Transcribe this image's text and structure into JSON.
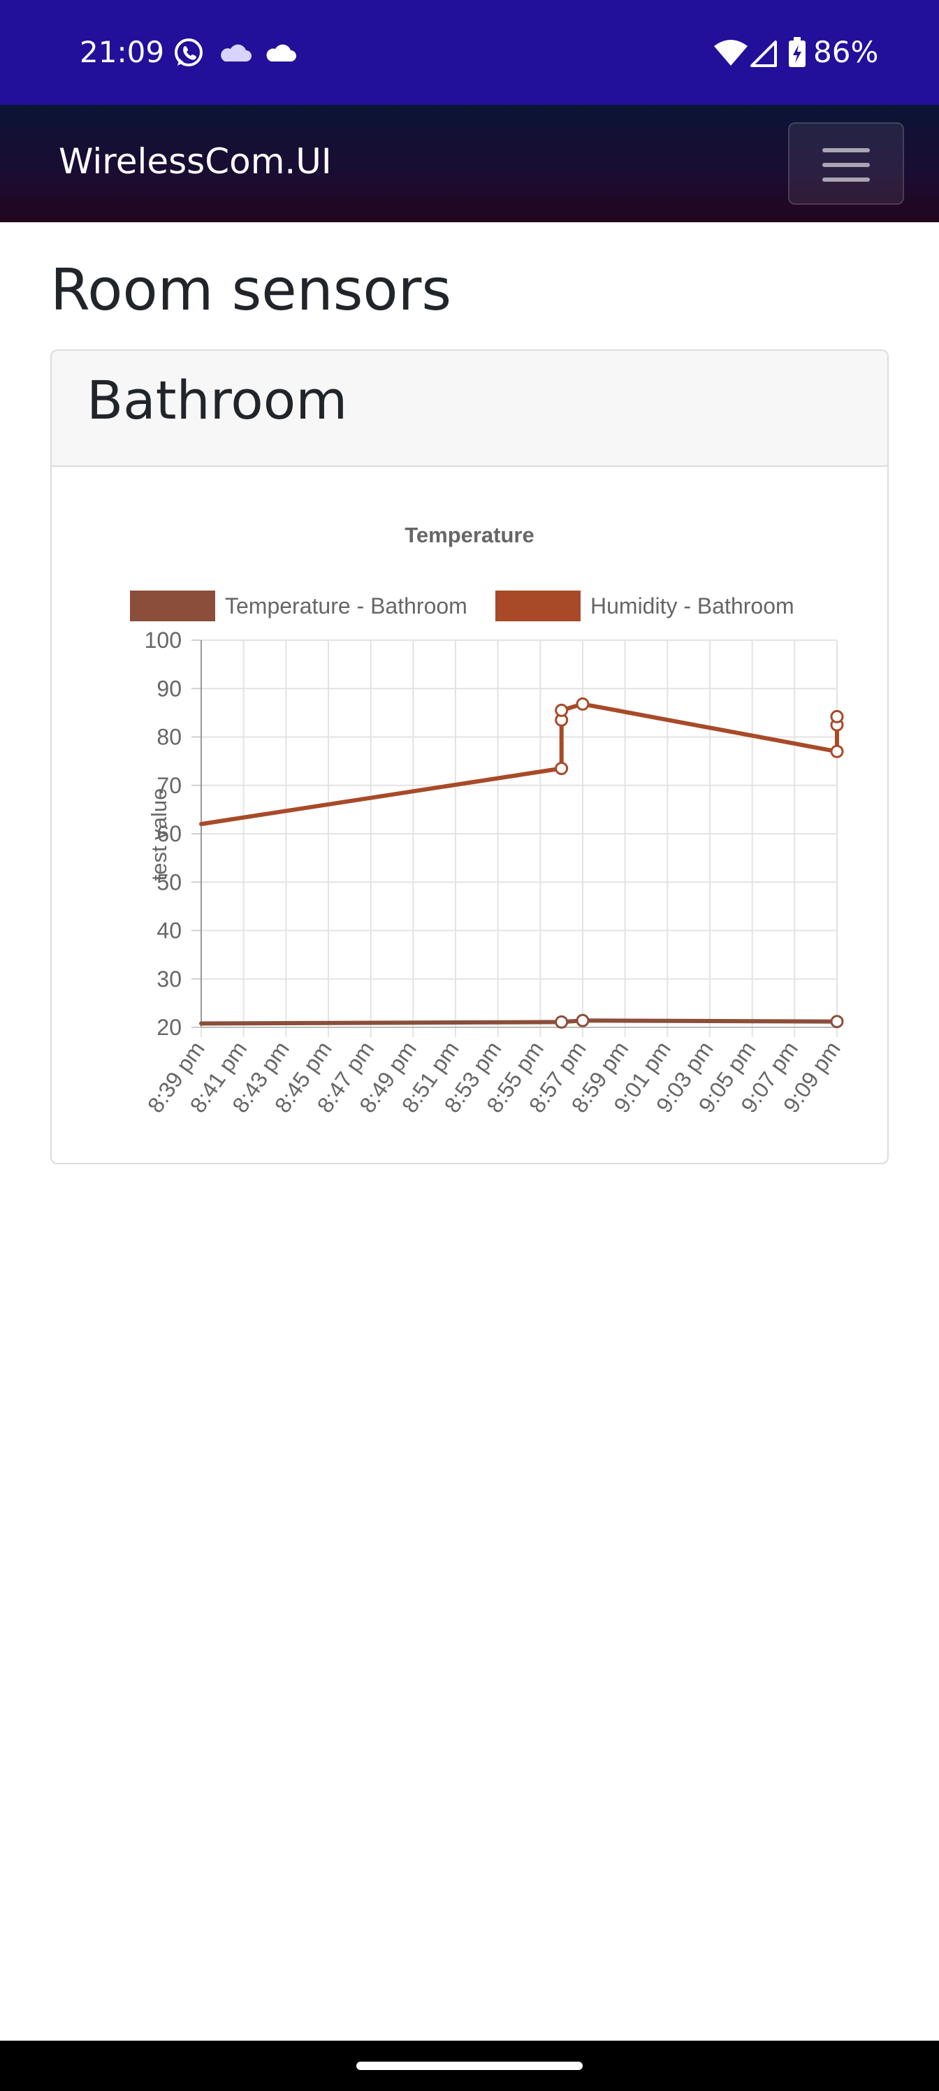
{
  "status_bar": {
    "time": "21:09",
    "battery": "86%",
    "notification_icons": [
      "whatsapp-icon",
      "onedrive-cloud-icon",
      "cloud-icon"
    ],
    "system_icons": [
      "wifi-icon",
      "signal-icon",
      "battery-charging-icon"
    ]
  },
  "navbar": {
    "brand": "WirelessCom.UI",
    "menu_icon": "hamburger-menu-icon"
  },
  "page": {
    "title": "Room sensors"
  },
  "card": {
    "title": "Bathroom"
  },
  "colors": {
    "status_bar": "#220f9a",
    "navbar": "#0b1436",
    "temperature_series": "#8b4e3a",
    "humidity_series": "#a84a28"
  },
  "chart_data": {
    "type": "line",
    "title": "Temperature",
    "ylabel": "test value",
    "xlabel": "",
    "ylim": [
      20,
      100
    ],
    "yticks": [
      20,
      30,
      40,
      50,
      60,
      70,
      80,
      90,
      100
    ],
    "x_ticks": [
      "8:39 pm",
      "8:41 pm",
      "8:43 pm",
      "8:45 pm",
      "8:47 pm",
      "8:49 pm",
      "8:51 pm",
      "8:53 pm",
      "8:55 pm",
      "8:57 pm",
      "8:59 pm",
      "9:01 pm",
      "9:03 pm",
      "9:05 pm",
      "9:07 pm",
      "9:09 pm"
    ],
    "x_range": [
      "8:39 pm",
      "9:09 pm"
    ],
    "grid": true,
    "legend_position": "top",
    "series": [
      {
        "name": "Temperature - Bathroom",
        "color": "#8b4e3a",
        "points": [
          {
            "x": "8:39 pm",
            "y": 20.8,
            "marker": false
          },
          {
            "x": "8:56 pm",
            "y": 21.1,
            "marker": true
          },
          {
            "x": "8:57 pm",
            "y": 21.4,
            "marker": true
          },
          {
            "x": "9:09 pm",
            "y": 21.2,
            "marker": true
          }
        ]
      },
      {
        "name": "Humidity - Bathroom",
        "color": "#a84a28",
        "points": [
          {
            "x": "8:39 pm",
            "y": 62,
            "marker": false
          },
          {
            "x": "8:56 pm",
            "y": 73.5,
            "marker": true
          },
          {
            "x": "8:56 pm",
            "y": 83.5,
            "marker": true
          },
          {
            "x": "8:56 pm",
            "y": 85.5,
            "marker": true
          },
          {
            "x": "8:57 pm",
            "y": 86.8,
            "marker": true
          },
          {
            "x": "9:09 pm",
            "y": 77,
            "marker": true
          },
          {
            "x": "9:09 pm",
            "y": 82.5,
            "marker": true
          },
          {
            "x": "9:09 pm",
            "y": 84.2,
            "marker": true
          }
        ]
      }
    ]
  }
}
